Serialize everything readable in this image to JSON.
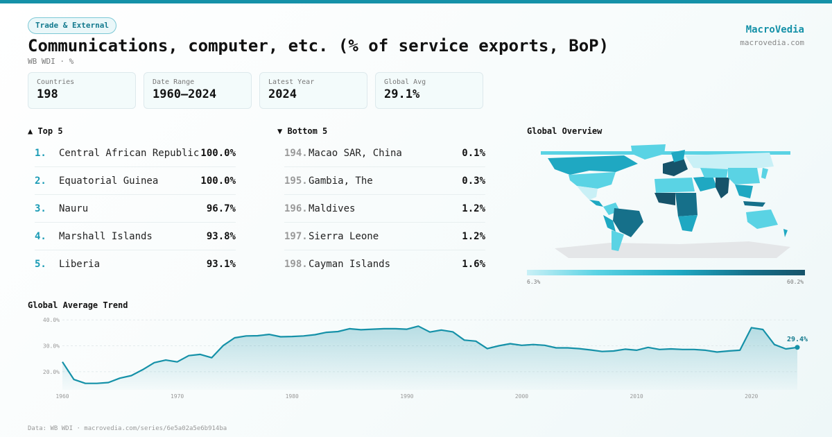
{
  "header": {
    "tag": "Trade & External",
    "title": "Communications, computer, etc. (% of service exports, BoP)",
    "subtitle": "WB WDI · %",
    "brand": "MacroVedia",
    "brand_url": "macrovedia.com"
  },
  "stats": [
    {
      "label": "Countries",
      "value": "198"
    },
    {
      "label": "Date Range",
      "value": "1960–2024"
    },
    {
      "label": "Latest Year",
      "value": "2024"
    },
    {
      "label": "Global Avg",
      "value": "29.1%"
    }
  ],
  "top5": {
    "heading": "▲ Top 5",
    "items": [
      {
        "rank": "1.",
        "name": "Central African Republic",
        "value": "100.0%"
      },
      {
        "rank": "2.",
        "name": "Equatorial Guinea",
        "value": "100.0%"
      },
      {
        "rank": "3.",
        "name": "Nauru",
        "value": "96.7%"
      },
      {
        "rank": "4.",
        "name": "Marshall Islands",
        "value": "93.8%"
      },
      {
        "rank": "5.",
        "name": "Liberia",
        "value": "93.1%"
      }
    ]
  },
  "bottom5": {
    "heading": "▼ Bottom 5",
    "items": [
      {
        "rank": "194.",
        "name": "Macao SAR, China",
        "value": "0.1%"
      },
      {
        "rank": "195.",
        "name": "Gambia, The",
        "value": "0.3%"
      },
      {
        "rank": "196.",
        "name": "Maldives",
        "value": "1.2%"
      },
      {
        "rank": "197.",
        "name": "Sierra Leone",
        "value": "1.2%"
      },
      {
        "rank": "198.",
        "name": "Cayman Islands",
        "value": "1.6%"
      }
    ]
  },
  "map": {
    "heading": "Global Overview",
    "legend_min": "6.3%",
    "legend_max": "60.2%",
    "colors": [
      "#c9f0f6",
      "#5ad3e4",
      "#1fa8c2",
      "#16708a",
      "#16536a"
    ],
    "no_data_color": "#e4e6e8"
  },
  "trend": {
    "heading": "Global Average Trend"
  },
  "chart_data": {
    "type": "area",
    "title": "Global Average Trend",
    "xlabel": "",
    "ylabel": "",
    "x_ticks": [
      "1960",
      "1970",
      "1980",
      "1990",
      "2000",
      "2010",
      "2020"
    ],
    "y_ticks": [
      "20.0%",
      "30.0%",
      "40.0%"
    ],
    "ylim": [
      13,
      43
    ],
    "xlim": [
      1960,
      2024
    ],
    "last_label": "29.4%",
    "series": [
      {
        "name": "Global Average",
        "color": "#1591a8",
        "x": [
          1960,
          1961,
          1962,
          1963,
          1964,
          1965,
          1966,
          1967,
          1968,
          1969,
          1970,
          1971,
          1972,
          1973,
          1974,
          1975,
          1976,
          1977,
          1978,
          1979,
          1980,
          1981,
          1982,
          1983,
          1984,
          1985,
          1986,
          1987,
          1988,
          1989,
          1990,
          1991,
          1992,
          1993,
          1994,
          1995,
          1996,
          1997,
          1998,
          1999,
          2000,
          2001,
          2002,
          2003,
          2004,
          2005,
          2006,
          2007,
          2008,
          2009,
          2010,
          2011,
          2012,
          2013,
          2014,
          2015,
          2016,
          2017,
          2018,
          2019,
          2020,
          2021,
          2022,
          2023,
          2024
        ],
        "values": [
          23.8,
          17.0,
          15.5,
          15.5,
          15.8,
          17.5,
          18.5,
          20.8,
          23.5,
          24.5,
          23.8,
          26.2,
          26.7,
          25.4,
          30.1,
          33.1,
          33.8,
          33.9,
          34.4,
          33.5,
          33.6,
          33.8,
          34.3,
          35.2,
          35.5,
          36.6,
          36.2,
          36.4,
          36.6,
          36.6,
          36.4,
          37.6,
          35.3,
          36.1,
          35.4,
          32.2,
          31.8,
          28.9,
          30.0,
          30.8,
          30.2,
          30.5,
          30.2,
          29.2,
          29.2,
          28.9,
          28.4,
          27.8,
          28.0,
          28.7,
          28.3,
          29.4,
          28.6,
          28.8,
          28.6,
          28.6,
          28.3,
          27.6,
          28.0,
          28.3,
          37.0,
          36.3,
          30.5,
          28.8,
          29.4
        ]
      }
    ]
  }
}
